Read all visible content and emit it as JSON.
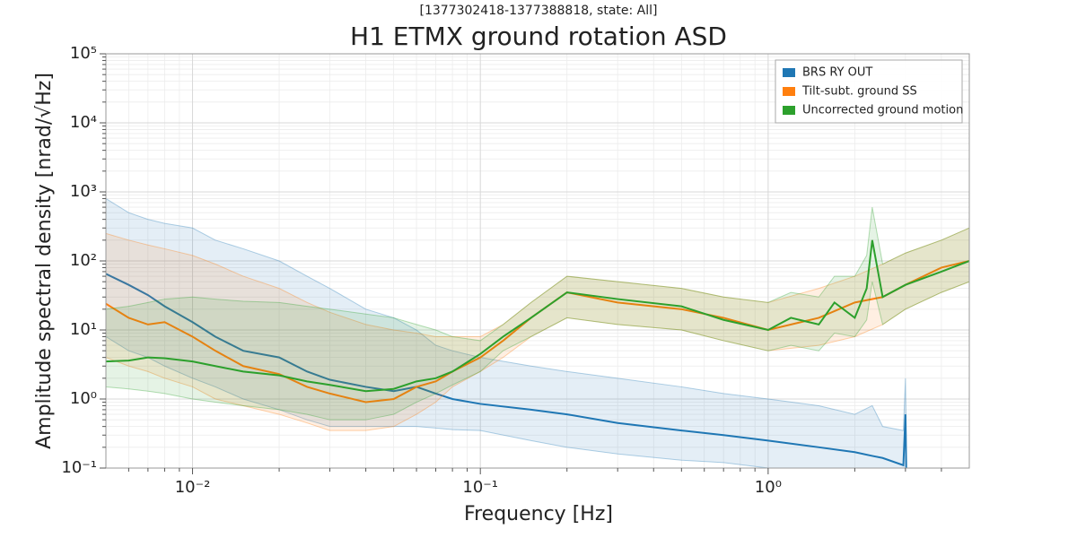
{
  "chart_data": {
    "type": "line",
    "subtitle": "[1377302418-1377388818, state: All]",
    "title": "H1 ETMX ground rotation ASD",
    "x_label": "Frequency [Hz]",
    "y_label": "Amplitude spectral density [nrad/√Hz]",
    "log_x": true,
    "log_y": true,
    "grid": true,
    "legend": "upper right",
    "xlim": [
      0.005,
      5
    ],
    "ylim": [
      0.1,
      100000
    ],
    "xticks": [
      {
        "value": 0.01,
        "label": "10⁻²"
      },
      {
        "value": 0.1,
        "label": "10⁻¹"
      },
      {
        "value": 1,
        "label": "10⁰"
      }
    ],
    "yticks": [
      {
        "value": 0.1,
        "label": "10⁻¹"
      },
      {
        "value": 1,
        "label": "10⁰"
      },
      {
        "value": 10,
        "label": "10¹"
      },
      {
        "value": 100,
        "label": "10²"
      },
      {
        "value": 1000,
        "label": "10³"
      },
      {
        "value": 10000,
        "label": "10⁴"
      },
      {
        "value": 100000,
        "label": "10⁵"
      }
    ],
    "series": [
      {
        "name": "BRS RY OUT",
        "color": "#1f77b4",
        "x": [
          0.005,
          0.006,
          0.007,
          0.008,
          0.01,
          0.012,
          0.015,
          0.02,
          0.025,
          0.03,
          0.04,
          0.05,
          0.06,
          0.07,
          0.08,
          0.1,
          0.15,
          0.2,
          0.3,
          0.5,
          0.7,
          1,
          1.5,
          2,
          2.3,
          2.5,
          2.95,
          3.0,
          3.02
        ],
        "values": [
          65,
          45,
          32,
          22,
          13,
          8,
          5,
          4,
          2.5,
          1.9,
          1.5,
          1.3,
          1.5,
          1.2,
          1.0,
          0.85,
          0.7,
          0.6,
          0.45,
          0.35,
          0.3,
          0.25,
          0.2,
          0.17,
          0.15,
          0.14,
          0.11,
          0.6,
          0.09
        ],
        "lower": [
          8,
          5,
          4,
          3,
          2,
          1.5,
          1.0,
          0.7,
          0.5,
          0.4,
          0.4,
          0.4,
          0.4,
          0.38,
          0.36,
          0.35,
          0.25,
          0.2,
          0.16,
          0.13,
          0.12,
          0.1,
          0.095,
          0.09,
          0.09,
          0.09,
          0.09,
          0.09,
          0.09
        ],
        "upper": [
          800,
          500,
          400,
          350,
          300,
          200,
          150,
          100,
          60,
          40,
          20,
          15,
          10,
          6,
          5,
          4,
          3,
          2.5,
          2,
          1.5,
          1.2,
          1.0,
          0.8,
          0.6,
          0.8,
          0.4,
          0.35,
          2,
          0.3
        ]
      },
      {
        "name": "Tilt-subt. ground SS",
        "color": "#ff7f0e",
        "x": [
          0.005,
          0.006,
          0.007,
          0.008,
          0.01,
          0.012,
          0.015,
          0.02,
          0.025,
          0.03,
          0.04,
          0.05,
          0.06,
          0.07,
          0.08,
          0.1,
          0.12,
          0.15,
          0.2,
          0.3,
          0.5,
          0.7,
          1,
          1.5,
          2,
          2.5,
          3,
          4,
          5
        ],
        "values": [
          24,
          15,
          12,
          13,
          8,
          5,
          3,
          2.3,
          1.5,
          1.2,
          0.9,
          1.0,
          1.5,
          1.8,
          2.5,
          4,
          7,
          15,
          35,
          25,
          20,
          15,
          10,
          15,
          25,
          30,
          45,
          80,
          100
        ],
        "lower": [
          4,
          3,
          2.5,
          2,
          1.5,
          1.0,
          0.8,
          0.6,
          0.45,
          0.35,
          0.35,
          0.4,
          0.6,
          0.9,
          1.5,
          2.5,
          4,
          8,
          15,
          12,
          10,
          7,
          5,
          6,
          8,
          12,
          20,
          35,
          50
        ],
        "upper": [
          250,
          200,
          170,
          150,
          120,
          90,
          60,
          40,
          25,
          18,
          12,
          10,
          9,
          8,
          8,
          8,
          12,
          25,
          60,
          50,
          40,
          30,
          25,
          40,
          60,
          90,
          130,
          200,
          300
        ]
      },
      {
        "name": "Uncorrected ground motion",
        "color": "#2ca02c",
        "x": [
          0.005,
          0.006,
          0.007,
          0.008,
          0.01,
          0.012,
          0.015,
          0.02,
          0.025,
          0.03,
          0.04,
          0.05,
          0.06,
          0.07,
          0.08,
          0.1,
          0.12,
          0.15,
          0.2,
          0.3,
          0.5,
          0.7,
          1,
          1.2,
          1.5,
          1.7,
          2,
          2.2,
          2.3,
          2.5,
          3,
          4,
          5
        ],
        "values": [
          3.5,
          3.6,
          4,
          3.9,
          3.5,
          3.0,
          2.5,
          2.2,
          1.8,
          1.6,
          1.3,
          1.4,
          1.8,
          2.0,
          2.5,
          4.5,
          8,
          15,
          35,
          28,
          22,
          14,
          10,
          15,
          12,
          25,
          15,
          40,
          200,
          30,
          45,
          70,
          100
        ],
        "lower": [
          1.5,
          1.4,
          1.3,
          1.2,
          1.0,
          0.9,
          0.8,
          0.7,
          0.6,
          0.5,
          0.5,
          0.6,
          0.9,
          1.2,
          1.6,
          2.5,
          5,
          8,
          15,
          12,
          10,
          7,
          5,
          6,
          5,
          9,
          8,
          14,
          50,
          12,
          20,
          35,
          50
        ],
        "upper": [
          20,
          22,
          25,
          28,
          30,
          28,
          26,
          25,
          22,
          20,
          17,
          15,
          12,
          10,
          8,
          7,
          12,
          25,
          60,
          50,
          40,
          30,
          25,
          35,
          30,
          60,
          60,
          120,
          600,
          90,
          130,
          200,
          300
        ]
      }
    ]
  }
}
